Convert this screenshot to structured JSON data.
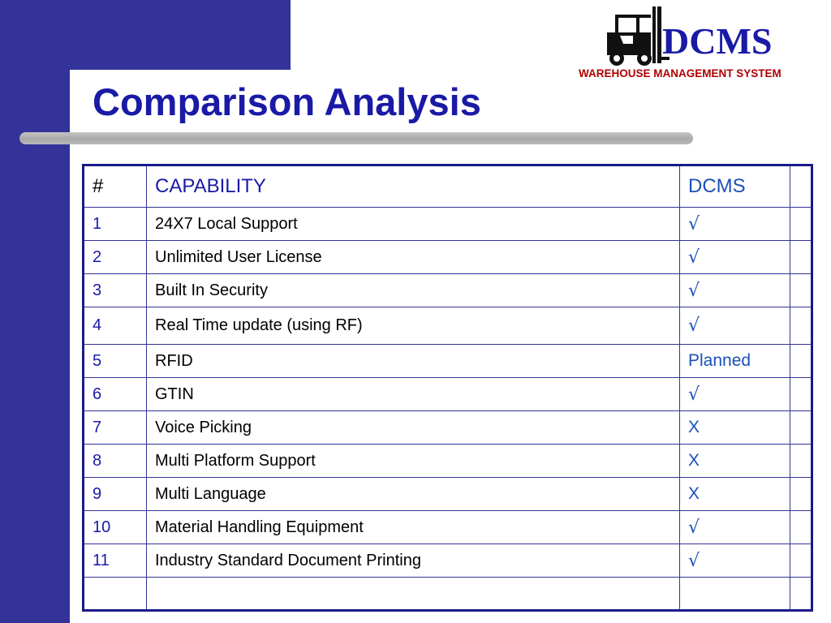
{
  "slide": {
    "title": "Comparison Analysis"
  },
  "logo": {
    "name": "DCMS",
    "subtitle": "WAREHOUSE MANAGEMENT SYSTEM",
    "icon": "forklift-icon"
  },
  "table": {
    "headers": {
      "num": "#",
      "capability": "CAPABILITY",
      "dcms": "DCMS",
      "extra": ""
    },
    "rows": [
      {
        "num": "1",
        "capability": "24X7 Local Support",
        "dcms": "√"
      },
      {
        "num": "2",
        "capability": "Unlimited User License",
        "dcms": "√"
      },
      {
        "num": "3",
        "capability": "Built In Security",
        "dcms": "√"
      },
      {
        "num": "4",
        "capability": "Real Time update (using RF)",
        "dcms": "√"
      },
      {
        "num": "5",
        "capability": "RFID",
        "dcms": "Planned"
      },
      {
        "num": "6",
        "capability": "GTIN",
        "dcms": "√"
      },
      {
        "num": "7",
        "capability": "Voice Picking",
        "dcms": "X"
      },
      {
        "num": "8",
        "capability": "Multi Platform Support",
        "dcms": "X"
      },
      {
        "num": "9",
        "capability": "Multi Language",
        "dcms": "X"
      },
      {
        "num": "10",
        "capability": "Material Handling Equipment",
        "dcms": "√"
      },
      {
        "num": "11",
        "capability": "Industry Standard Document Printing",
        "dcms": "√"
      },
      {
        "num": "",
        "capability": "",
        "dcms": ""
      }
    ]
  },
  "colors": {
    "navy": "#333399",
    "title_blue": "#1a1aa6",
    "value_blue": "#1a4fb8",
    "logo_red": "#b00000",
    "divider_gray": "#b3b3b3"
  }
}
